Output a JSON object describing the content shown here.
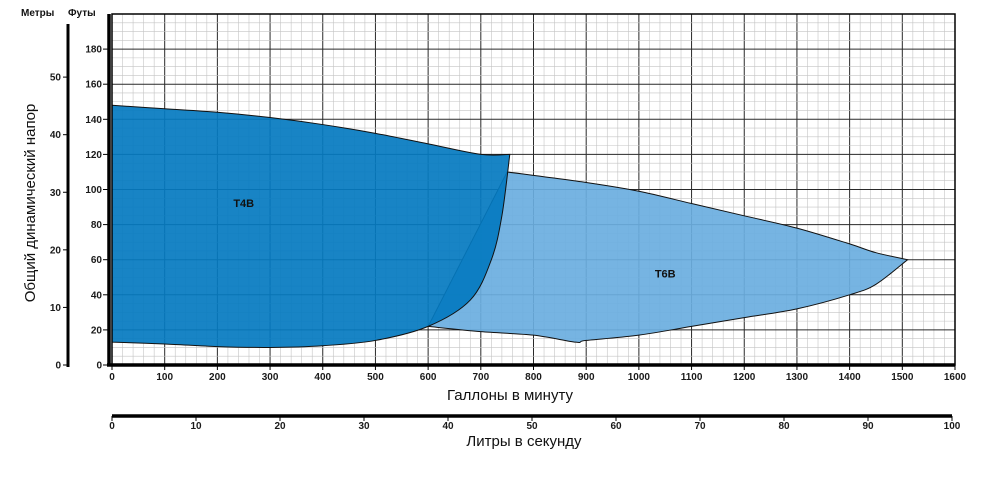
{
  "chart_data": {
    "type": "area",
    "units": {
      "meters": "Метры",
      "feet": "Футы"
    },
    "ylabel": "Общий динамический напор",
    "xlabel": "Галлоны в минуту",
    "x2label": "Литры в секунду",
    "xlim": [
      0,
      1600
    ],
    "xticks": [
      0,
      100,
      200,
      300,
      400,
      500,
      600,
      700,
      800,
      900,
      1000,
      1100,
      1200,
      1300,
      1400,
      1500,
      1600
    ],
    "x2lim": [
      0,
      100
    ],
    "x2ticks": [
      0,
      10,
      20,
      30,
      40,
      50,
      60,
      70,
      80,
      90,
      100
    ],
    "ylim": [
      0,
      200
    ],
    "yticks": [
      0,
      20,
      40,
      60,
      80,
      100,
      120,
      140,
      160,
      180
    ],
    "y2ticks": [
      0,
      10,
      20,
      30,
      40,
      50
    ],
    "grid": true,
    "series": [
      {
        "name": "T6B",
        "color": "#6aaee0",
        "upper": [
          [
            750,
            110
          ],
          [
            900,
            104
          ],
          [
            1000,
            99
          ],
          [
            1100,
            92
          ],
          [
            1200,
            85
          ],
          [
            1300,
            78
          ],
          [
            1400,
            69
          ],
          [
            1450,
            64
          ],
          [
            1510,
            60
          ]
        ],
        "lower": [
          [
            600,
            22
          ],
          [
            700,
            19
          ],
          [
            800,
            17
          ],
          [
            880,
            13
          ],
          [
            900,
            14
          ],
          [
            1000,
            17
          ],
          [
            1100,
            22
          ],
          [
            1200,
            27
          ],
          [
            1300,
            32
          ],
          [
            1400,
            40
          ],
          [
            1450,
            46
          ],
          [
            1510,
            60
          ]
        ]
      },
      {
        "name": "T4B",
        "color": "#0479c0",
        "upper": [
          [
            0,
            148
          ],
          [
            100,
            146
          ],
          [
            200,
            144
          ],
          [
            300,
            141
          ],
          [
            400,
            137
          ],
          [
            500,
            132
          ],
          [
            600,
            126
          ],
          [
            700,
            120
          ],
          [
            755,
            120
          ]
        ],
        "lower": [
          [
            0,
            13
          ],
          [
            100,
            12
          ],
          [
            200,
            10.5
          ],
          [
            300,
            10
          ],
          [
            400,
            11
          ],
          [
            500,
            14
          ],
          [
            600,
            22
          ],
          [
            680,
            37
          ],
          [
            720,
            60
          ],
          [
            740,
            85
          ],
          [
            755,
            120
          ]
        ]
      }
    ]
  }
}
